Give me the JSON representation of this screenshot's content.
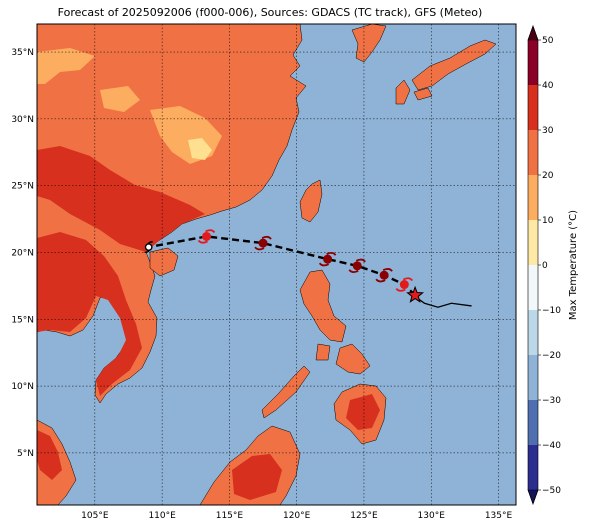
{
  "title": "Forecast of 2025092006 (f000-006), Sources: GDACS (TC track), GFS (Meteo)",
  "colors": {
    "ocean": "#8fb3d6",
    "land_hot": "#f07244",
    "land_very_hot": "#d7301f",
    "land_warm": "#fdad60",
    "land_mild": "#fee090",
    "track_past": "#000000",
    "track_forecast": "#000000",
    "storm_marker": "#8b0000",
    "storm_marker_light": "#e31a1c"
  },
  "axes": {
    "lon_labels": [
      "105°E",
      "110°E",
      "115°E",
      "120°E",
      "125°E",
      "130°E",
      "135°E"
    ],
    "lat_labels": [
      "35°N",
      "30°N",
      "25°N",
      "20°N",
      "15°N",
      "10°N",
      "5°N"
    ],
    "lon_values": [
      105,
      110,
      115,
      120,
      125,
      130,
      135
    ],
    "lat_values": [
      35,
      30,
      25,
      20,
      15,
      10,
      5
    ],
    "lon_range": [
      100.7,
      136.3
    ],
    "lat_range": [
      1.1,
      37.1
    ],
    "grid": "dotted"
  },
  "colorbar": {
    "label": "Max Temperature (°C)",
    "ticks": [
      "50",
      "40",
      "30",
      "20",
      "10",
      "0",
      "−10",
      "−20",
      "−30",
      "−40",
      "−50"
    ],
    "tick_values": [
      50,
      40,
      30,
      20,
      10,
      0,
      -10,
      -20,
      -30,
      -40,
      -50
    ],
    "bands": [
      {
        "from": 40,
        "to": 50,
        "color": "#8b0026"
      },
      {
        "from": 30,
        "to": 40,
        "color": "#d7301f"
      },
      {
        "from": 20,
        "to": 30,
        "color": "#f07244"
      },
      {
        "from": 10,
        "to": 20,
        "color": "#fdad60"
      },
      {
        "from": 0,
        "to": 10,
        "color": "#fee8a6"
      },
      {
        "from": -10,
        "to": 0,
        "color": "#f2f7fa"
      },
      {
        "from": -20,
        "to": -10,
        "color": "#bcd7e7"
      },
      {
        "from": -30,
        "to": -20,
        "color": "#8fb3d6"
      },
      {
        "from": -40,
        "to": -30,
        "color": "#4f6fb0"
      },
      {
        "from": -50,
        "to": -40,
        "color": "#2b2d8f"
      }
    ]
  },
  "track": {
    "past": [
      [
        133,
        16.0
      ],
      [
        131.5,
        16.2
      ],
      [
        130.5,
        15.9
      ],
      [
        129.5,
        16.2
      ],
      [
        128.8,
        16.7
      ]
    ],
    "current": [
      128.8,
      16.8
    ],
    "forecast": [
      [
        128.0,
        17.6
      ],
      [
        126.5,
        18.3
      ],
      [
        124.5,
        19.0
      ],
      [
        122.3,
        19.5
      ],
      [
        117.5,
        20.7
      ],
      [
        113.3,
        21.2
      ],
      [
        109.5,
        20.5
      ]
    ],
    "forecast_markers": [
      {
        "lon": 128.0,
        "lat": 17.6,
        "level": "light"
      },
      {
        "lon": 126.5,
        "lat": 18.3,
        "level": "strong"
      },
      {
        "lon": 124.5,
        "lat": 19.0,
        "level": "strong"
      },
      {
        "lon": 122.3,
        "lat": 19.5,
        "level": "strong"
      },
      {
        "lon": 117.5,
        "lat": 20.7,
        "level": "strong"
      },
      {
        "lon": 113.3,
        "lat": 21.2,
        "level": "light"
      },
      {
        "lon": 109.0,
        "lat": 20.4,
        "level": "depression"
      }
    ]
  }
}
